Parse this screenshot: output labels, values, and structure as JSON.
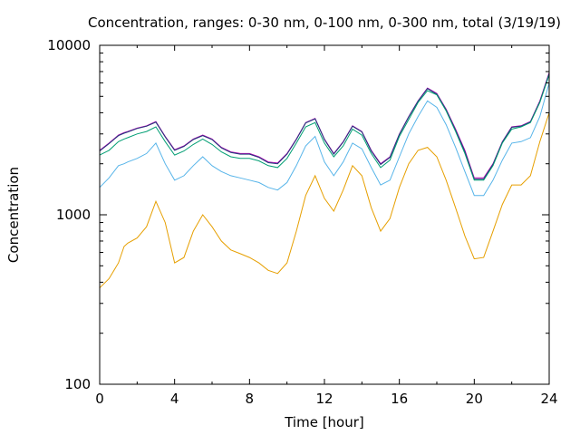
{
  "chart_data": {
    "type": "line",
    "title": "Concentration, ranges: 0-30 nm, 0-100 nm, 0-300 nm, total (3/19/19)",
    "xlabel": "Time [hour]",
    "ylabel": "Concentration",
    "xlim": [
      0,
      24
    ],
    "ylim": [
      100,
      10000
    ],
    "yscale": "log",
    "grid": false,
    "legend": "none",
    "xticks": [
      "0",
      "4",
      "8",
      "12",
      "16",
      "20",
      "24"
    ],
    "yticks": [
      "100",
      "1000",
      "10000"
    ],
    "x": [
      0,
      0.5,
      1,
      1.3,
      1.5,
      2,
      2.5,
      3,
      3.5,
      4,
      4.5,
      5,
      5.5,
      6,
      6.5,
      7,
      7.5,
      8,
      8.5,
      9,
      9.5,
      10,
      10.5,
      11,
      11.5,
      12,
      12.5,
      13,
      13.5,
      14,
      14.5,
      15,
      15.5,
      16,
      16.5,
      17,
      17.5,
      18,
      18.5,
      19,
      19.5,
      20,
      20.5,
      21,
      21.5,
      22,
      22.5,
      23,
      23.5,
      24
    ],
    "series": [
      {
        "color": "#b000b0",
        "values": [
          2400,
          2650,
          2950,
          3050,
          3100,
          3250,
          3350,
          3550,
          2900,
          2420,
          2550,
          2800,
          2950,
          2800,
          2500,
          2350,
          2300,
          2300,
          2200,
          2050,
          2020,
          2300,
          2800,
          3500,
          3700,
          2800,
          2300,
          2700,
          3350,
          3100,
          2400,
          2000,
          2200,
          3000,
          3800,
          4700,
          5600,
          5200,
          4200,
          3200,
          2400,
          1650,
          1650,
          2000,
          2700,
          3300,
          3350,
          3550,
          4700,
          6900
        ]
      },
      {
        "color": "#1f3a7a",
        "values": [
          2380,
          2630,
          2930,
          3030,
          3080,
          3230,
          3330,
          3520,
          2880,
          2400,
          2530,
          2780,
          2930,
          2780,
          2480,
          2330,
          2280,
          2280,
          2180,
          2030,
          2000,
          2280,
          2780,
          3480,
          3680,
          2780,
          2280,
          2680,
          3330,
          3080,
          2380,
          1980,
          2180,
          2980,
          3780,
          4680,
          5550,
          5150,
          4150,
          3150,
          2350,
          1620,
          1620,
          1980,
          2680,
          3280,
          3330,
          3530,
          4650,
          6800
        ]
      },
      {
        "color": "#009e73",
        "values": [
          2250,
          2400,
          2700,
          2800,
          2850,
          3000,
          3100,
          3300,
          2700,
          2250,
          2380,
          2600,
          2800,
          2600,
          2350,
          2200,
          2150,
          2150,
          2080,
          1950,
          1900,
          2150,
          2650,
          3300,
          3500,
          2650,
          2200,
          2550,
          3200,
          2950,
          2300,
          1900,
          2100,
          2900,
          3650,
          4600,
          5400,
          5100,
          4100,
          3100,
          2300,
          1600,
          1600,
          1950,
          2650,
          3200,
          3300,
          3500,
          4600,
          6700
        ]
      },
      {
        "color": "#56b4e9",
        "values": [
          1450,
          1650,
          1950,
          2000,
          2050,
          2150,
          2300,
          2650,
          2000,
          1600,
          1700,
          1950,
          2200,
          1950,
          1800,
          1700,
          1650,
          1600,
          1550,
          1450,
          1400,
          1550,
          1950,
          2550,
          2900,
          2050,
          1700,
          2050,
          2650,
          2450,
          1900,
          1500,
          1600,
          2200,
          3000,
          3800,
          4700,
          4300,
          3400,
          2500,
          1800,
          1300,
          1300,
          1600,
          2100,
          2650,
          2700,
          2850,
          3800,
          6000
        ]
      },
      {
        "color": "#e69f00",
        "values": [
          370,
          420,
          520,
          650,
          680,
          730,
          850,
          1200,
          900,
          520,
          560,
          800,
          1000,
          850,
          700,
          620,
          590,
          560,
          520,
          470,
          450,
          520,
          800,
          1300,
          1700,
          1250,
          1050,
          1400,
          1950,
          1700,
          1100,
          800,
          950,
          1450,
          2000,
          2400,
          2500,
          2200,
          1600,
          1100,
          750,
          550,
          560,
          800,
          1150,
          1500,
          1500,
          1700,
          2700,
          4000
        ]
      }
    ]
  }
}
